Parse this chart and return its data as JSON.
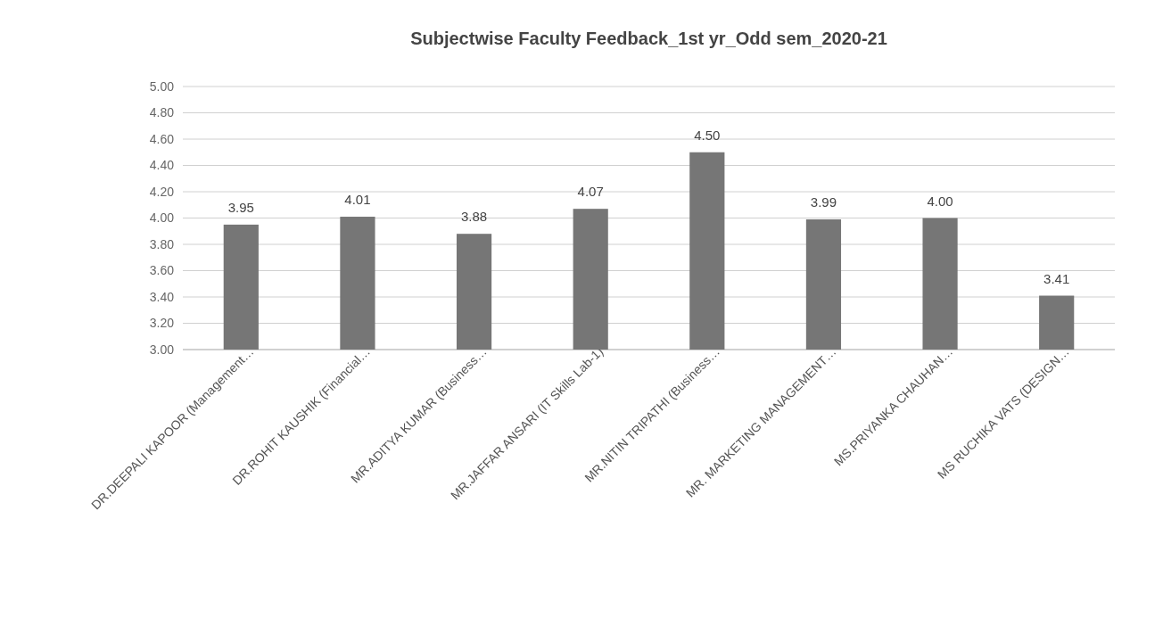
{
  "chart_data": {
    "type": "bar",
    "title": "Subjectwise Faculty Feedback_1st yr_Odd sem_2020-21",
    "categories": [
      "DR.DEEPALI KAPOOR (Management…",
      "DR.ROHIT KAUSHIK (Financial…",
      "MR.ADITYA KUMAR (Business…",
      "MR.JAFFAR ANSARI (IT Skills Lab-1)",
      "MR.NITIN TRIPATHI (Business…",
      "MR. MARKETING MANAGEMENT…",
      "MS.PRIYANKA CHAUHAN…",
      "MS RUCHIKA VATS (DESIGN…"
    ],
    "values": [
      3.95,
      4.01,
      3.88,
      4.07,
      4.5,
      3.99,
      4.0,
      3.41
    ],
    "value_labels": [
      "3.95",
      "4.01",
      "3.88",
      "4.07",
      "4.50",
      "3.99",
      "4.00",
      "3.41"
    ],
    "color": "#767676",
    "ylim": [
      3,
      5
    ],
    "yticks": [
      {
        "value": 3,
        "label": "3.00"
      },
      {
        "value": 3.2,
        "label": "3.20"
      },
      {
        "value": 3.4,
        "label": "3.40"
      },
      {
        "value": 3.6,
        "label": "3.60"
      },
      {
        "value": 3.8,
        "label": "3.80"
      },
      {
        "value": 4,
        "label": "4.00"
      },
      {
        "value": 4.2,
        "label": "4.20"
      },
      {
        "value": 4.4,
        "label": "4.40"
      },
      {
        "value": 4.6,
        "label": "4.60"
      },
      {
        "value": 4.8,
        "label": "4.80"
      },
      {
        "value": 5,
        "label": "5.00"
      }
    ],
    "grid": "y"
  }
}
